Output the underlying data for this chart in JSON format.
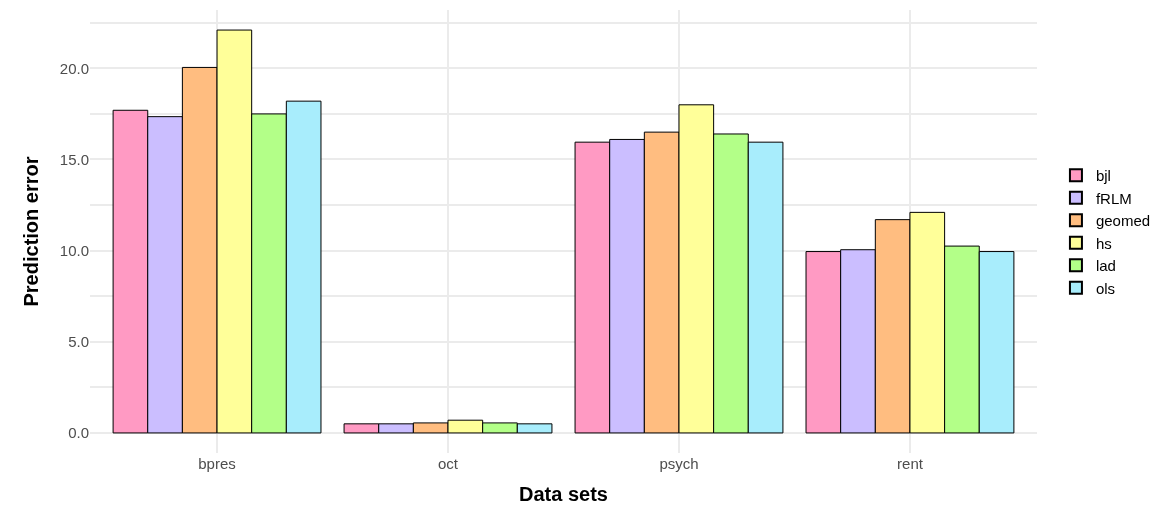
{
  "chart_data": {
    "type": "bar",
    "xlabel": "Data sets",
    "ylabel": "Prediction error",
    "categories": [
      "bpres",
      "oct",
      "psych",
      "rent"
    ],
    "series": [
      {
        "name": "bjl",
        "color": "#ff9ac3",
        "values": [
          17.7,
          0.5,
          15.95,
          9.95
        ]
      },
      {
        "name": "fRLM",
        "color": "#cbbeff",
        "values": [
          17.35,
          0.5,
          16.1,
          10.05
        ]
      },
      {
        "name": "geomed",
        "color": "#ffbd80",
        "values": [
          20.05,
          0.55,
          16.5,
          11.7
        ]
      },
      {
        "name": "hs",
        "color": "#ffff99",
        "values": [
          22.1,
          0.7,
          18.0,
          12.1
        ]
      },
      {
        "name": "lad",
        "color": "#b3ff88",
        "values": [
          17.5,
          0.55,
          16.4,
          10.25
        ]
      },
      {
        "name": "ols",
        "color": "#a8edfc",
        "values": [
          18.2,
          0.5,
          15.95,
          9.95
        ]
      }
    ],
    "ylim": [
      -1.1,
      23.2
    ],
    "yticks": [
      {
        "value": 0,
        "label": "0.0"
      },
      {
        "value": 2.5,
        "label": null
      },
      {
        "value": 5,
        "label": "5.0"
      },
      {
        "value": 7.5,
        "label": null
      },
      {
        "value": 10,
        "label": "10.0"
      },
      {
        "value": 12.5,
        "label": null
      },
      {
        "value": 15,
        "label": "15.0"
      },
      {
        "value": 17.5,
        "label": null
      },
      {
        "value": 20,
        "label": "20.0"
      },
      {
        "value": 22.5,
        "label": null
      }
    ],
    "grid": true,
    "legend": "right"
  }
}
